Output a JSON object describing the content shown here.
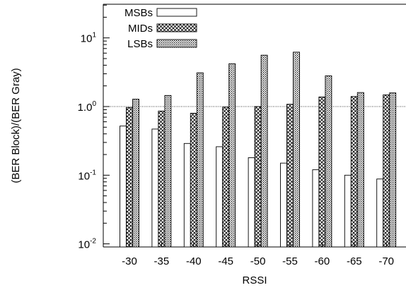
{
  "chart_data": {
    "type": "bar",
    "xlabel": "RSSI",
    "ylabel": "(BER Block)/(BER Gray)",
    "yscale": "log",
    "ylim": [
      0.01,
      30
    ],
    "reference_line": 1.0,
    "yticks": [
      {
        "base": "10",
        "exp": "-2",
        "value": 0.01
      },
      {
        "base": "10",
        "exp": "-1",
        "value": 0.1
      },
      {
        "base": "10",
        "exp": "0",
        "value": 1,
        "label": "1.0",
        "label_exp": "0"
      },
      {
        "base": "10",
        "exp": "1",
        "value": 10
      }
    ],
    "categories": [
      "-30",
      "-35",
      "-40",
      "-45",
      "-50",
      "-55",
      "-60",
      "-65",
      "-70"
    ],
    "legend_position": "top-left",
    "series": [
      {
        "name": "MSBs",
        "pattern": "none",
        "values": [
          0.52,
          0.47,
          0.29,
          0.26,
          0.18,
          0.15,
          0.12,
          0.1,
          0.088
        ]
      },
      {
        "name": "MIDs",
        "pattern": "crosshatch",
        "values": [
          0.97,
          0.86,
          0.8,
          0.98,
          1.0,
          1.08,
          1.38,
          1.4,
          1.48
        ]
      },
      {
        "name": "LSBs",
        "pattern": "dots",
        "values": [
          1.28,
          1.45,
          3.1,
          4.2,
          5.6,
          6.2,
          2.8,
          1.6,
          1.58
        ]
      }
    ]
  }
}
